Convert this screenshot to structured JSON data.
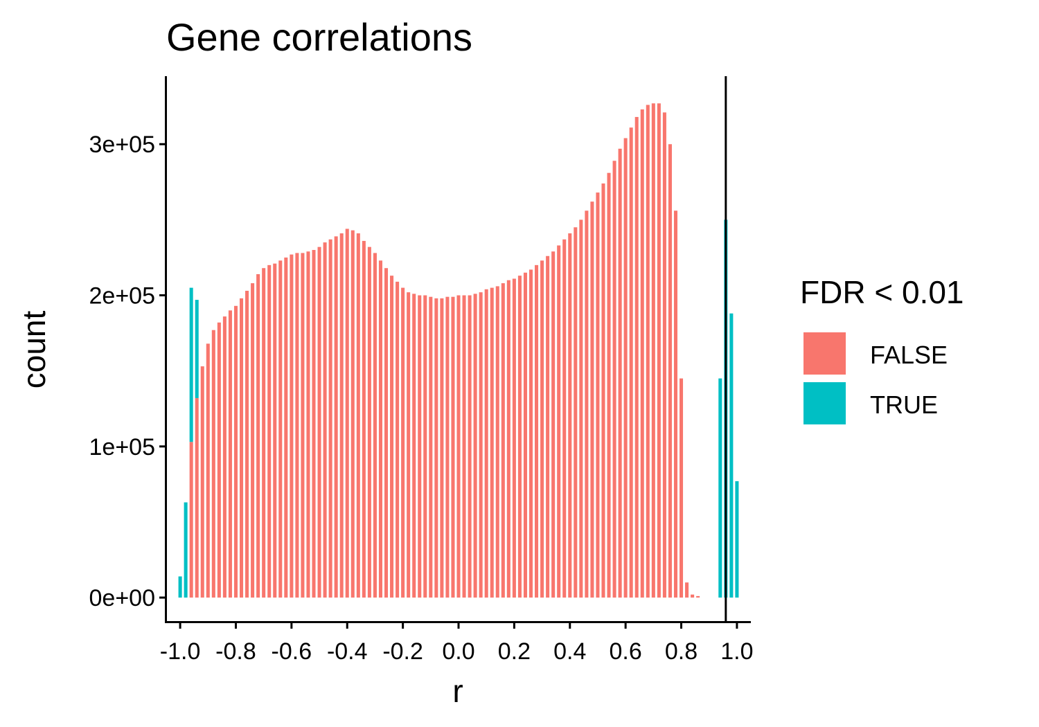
{
  "chart_data": {
    "type": "bar",
    "title": "Gene correlations",
    "xlabel": "r",
    "ylabel": "count",
    "xlim": [
      -1.05,
      1.05
    ],
    "ylim": [
      -16000,
      345000
    ],
    "xticks": [
      -1.0,
      -0.8,
      -0.6,
      -0.4,
      -0.2,
      0.0,
      0.2,
      0.4,
      0.6,
      0.8,
      1.0
    ],
    "xtick_labels": [
      "-1.0",
      "-0.8",
      "-0.6",
      "-0.4",
      "-0.2",
      "0.0",
      "0.2",
      "0.4",
      "0.6",
      "0.8",
      "1.0"
    ],
    "yticks": [
      0,
      100000,
      200000,
      300000
    ],
    "ytick_labels": [
      "0e+00",
      "1e+05",
      "2e+05",
      "3e+05"
    ],
    "vline_x": 0.96,
    "grid": false,
    "legend": {
      "title": "FDR < 0.01",
      "position": "right",
      "entries": [
        {
          "label": "FALSE",
          "color": "#F8766D"
        },
        {
          "label": "TRUE",
          "color": "#00BFC4"
        }
      ]
    },
    "series": [
      {
        "name": "FALSE",
        "color": "#F8766D",
        "x": [
          -0.96,
          -0.94,
          -0.92,
          -0.9,
          -0.88,
          -0.86,
          -0.84,
          -0.82,
          -0.8,
          -0.78,
          -0.76,
          -0.74,
          -0.72,
          -0.7,
          -0.68,
          -0.66,
          -0.64,
          -0.62,
          -0.6,
          -0.58,
          -0.56,
          -0.54,
          -0.52,
          -0.5,
          -0.48,
          -0.46,
          -0.44,
          -0.42,
          -0.4,
          -0.38,
          -0.36,
          -0.34,
          -0.32,
          -0.3,
          -0.28,
          -0.26,
          -0.24,
          -0.22,
          -0.2,
          -0.18,
          -0.16,
          -0.14,
          -0.12,
          -0.1,
          -0.08,
          -0.06,
          -0.04,
          -0.02,
          0.0,
          0.02,
          0.04,
          0.06,
          0.08,
          0.1,
          0.12,
          0.14,
          0.16,
          0.18,
          0.2,
          0.22,
          0.24,
          0.26,
          0.28,
          0.3,
          0.32,
          0.34,
          0.36,
          0.38,
          0.4,
          0.42,
          0.44,
          0.46,
          0.48,
          0.5,
          0.52,
          0.54,
          0.56,
          0.58,
          0.6,
          0.62,
          0.64,
          0.66,
          0.68,
          0.7,
          0.72,
          0.74,
          0.76,
          0.78,
          0.8,
          0.82,
          0.84,
          0.86,
          0.88,
          0.9,
          0.92,
          0.94
        ],
        "values": [
          103000,
          132000,
          153000,
          168000,
          177000,
          182000,
          186000,
          190000,
          193000,
          198000,
          203000,
          208000,
          214000,
          218000,
          220000,
          221000,
          223000,
          225000,
          227000,
          228000,
          228000,
          229000,
          230000,
          232000,
          235000,
          237000,
          239000,
          241000,
          244000,
          243000,
          241000,
          236000,
          232000,
          228000,
          223000,
          218000,
          213000,
          209000,
          205000,
          202000,
          201000,
          200000,
          200000,
          199000,
          198000,
          198000,
          199000,
          199000,
          200000,
          200000,
          200000,
          201000,
          202000,
          204000,
          205000,
          206000,
          208000,
          210000,
          211000,
          213000,
          215000,
          217000,
          220000,
          223000,
          226000,
          229000,
          233000,
          237000,
          241000,
          245000,
          250000,
          256000,
          262000,
          268000,
          274000,
          281000,
          289000,
          297000,
          304000,
          311000,
          318000,
          323000,
          326000,
          327000,
          327000,
          321000,
          300000,
          256000,
          145000,
          10000,
          2000,
          1000,
          0,
          0,
          0,
          0
        ]
      },
      {
        "name": "TRUE",
        "color": "#00BFC4",
        "x": [
          -1.0,
          -0.98,
          -0.96,
          -0.94,
          0.94,
          0.96,
          0.98,
          1.0
        ],
        "values": [
          14000,
          63000,
          102000,
          65000,
          145000,
          250000,
          188000,
          77000
        ]
      }
    ]
  }
}
